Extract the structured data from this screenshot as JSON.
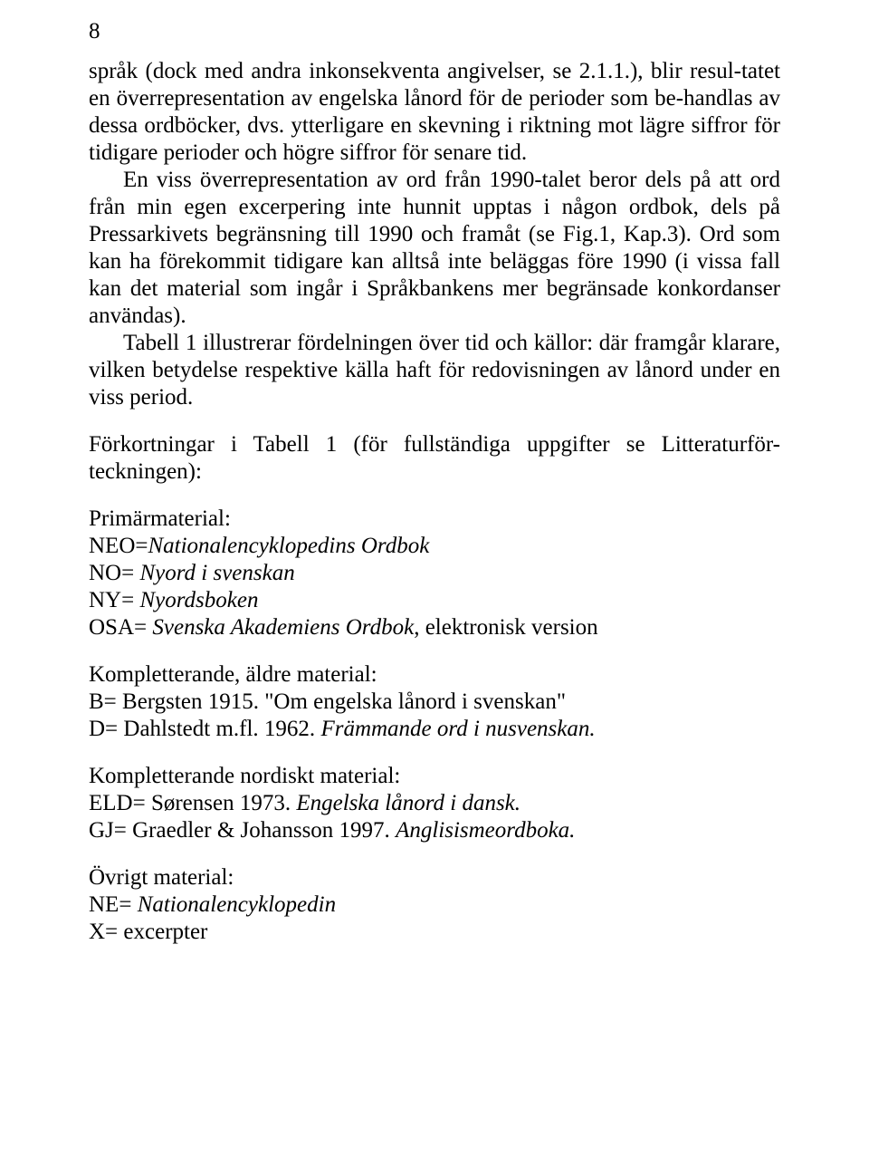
{
  "page_number": "8",
  "paragraphs": {
    "p1": "språk (dock med andra inkonsekventa angivelser, se 2.1.1.), blir resul-tatet en överrepresentation av engelska lånord för de perioder som be-handlas av dessa ordböcker, dvs. ytterligare en skevning i riktning mot lägre siffror för tidigare perioder och högre siffror för senare tid.",
    "p2": "En viss överrepresentation av ord från 1990-talet beror dels på att ord från min egen excerpering inte hunnit upptas i någon ordbok, dels på Pressarkivets begränsning till 1990 och framåt (se Fig.1, Kap.3). Ord som kan ha förekommit tidigare kan alltså inte beläggas före 1990 (i vissa fall kan det material som ingår i Språkbankens mer begränsade konkordanser användas).",
    "p3": "Tabell 1 illustrerar fördelningen över tid och källor: där framgår klarare, vilken betydelse respektive källa haft för redovisningen av lånord under en viss period.",
    "p4": "Förkortningar i Tabell 1 (för fullständiga uppgifter se Litteraturför-teckningen):"
  },
  "primary": {
    "heading": "Primärmaterial:",
    "neo_prefix": "NEO=",
    "neo_italic": "Nationalencyklopedins Ordbok",
    "no_prefix": "NO= ",
    "no_italic": "Nyord i svenskan",
    "ny_prefix": "NY= ",
    "ny_italic": "Nyordsboken",
    "osa_prefix": "OSA= ",
    "osa_italic": "Svenska Akademiens Ordbok",
    "osa_suffix": ", elektronisk version"
  },
  "older": {
    "heading": "Kompletterande, äldre material:",
    "b_line": "B= Bergsten 1915. \"Om engelska lånord i svenskan\"",
    "d_prefix": "D= Dahlstedt m.fl. 1962. ",
    "d_italic": "Främmande ord i nusvenskan."
  },
  "nordic": {
    "heading": "Kompletterande nordiskt material:",
    "eld_prefix": "ELD= Sørensen 1973. ",
    "eld_italic": "Engelska lånord i dansk.",
    "gj_prefix": "GJ= Graedler & Johansson 1997. ",
    "gj_italic": "Anglisismeordboka."
  },
  "other": {
    "heading": "Övrigt material:",
    "ne_prefix": "NE= ",
    "ne_italic": "Nationalencyklopedin",
    "x_line": "X= excerpter"
  }
}
